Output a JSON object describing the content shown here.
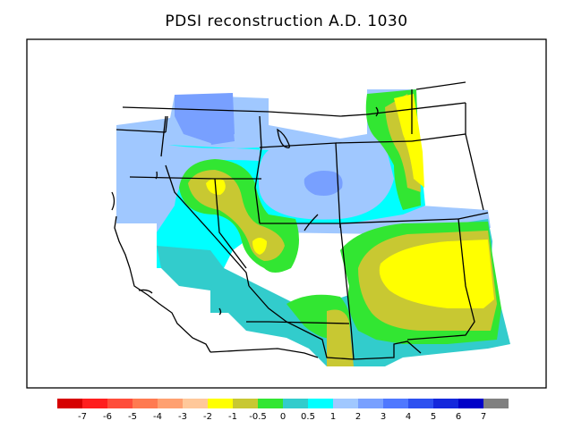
{
  "title": "PDSI reconstruction A.D. 1030",
  "colorbar": {
    "colors": [
      "#d60000",
      "#ff1e1e",
      "#ff4d3a",
      "#ff7a50",
      "#ffa070",
      "#ffc89a",
      "#ffff00",
      "#c8c832",
      "#32e632",
      "#32cccc",
      "#00ffff",
      "#a0c8ff",
      "#78a0ff",
      "#4f78ff",
      "#2d50f0",
      "#1428dc",
      "#0000c8",
      "#808080"
    ],
    "labels": [
      "-7",
      "-6",
      "-5",
      "-4",
      "-3",
      "-2",
      "-1",
      "-0.5",
      "0",
      "0.5",
      "1",
      "2",
      "3",
      "4",
      "5",
      "6",
      "7"
    ]
  }
}
